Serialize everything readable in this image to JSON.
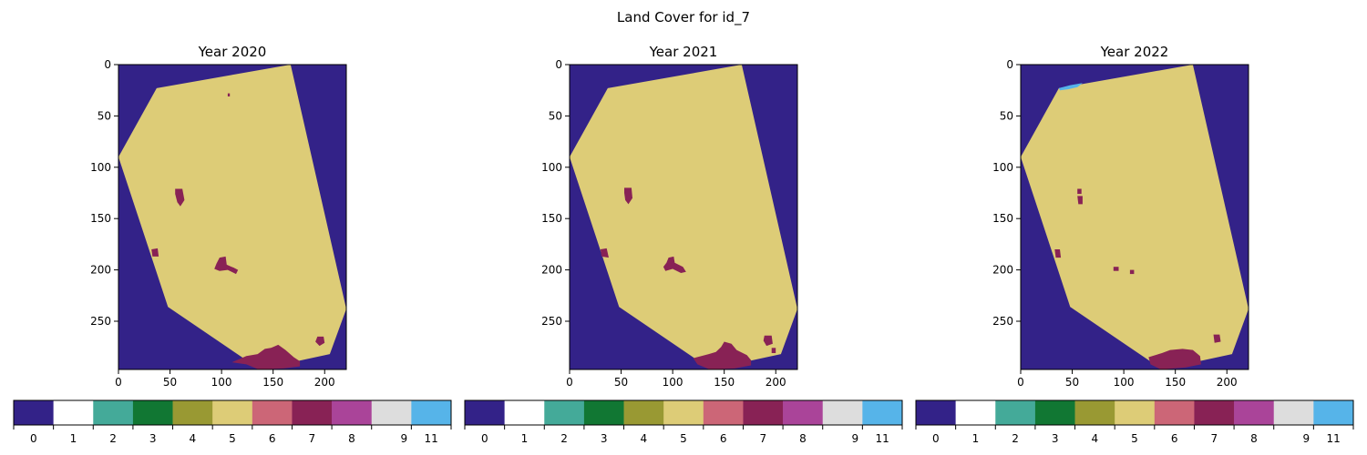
{
  "suptitle": "Land Cover for id_7",
  "colors": {
    "0": "#332288",
    "1": "#ffffff",
    "2": "#44aa99",
    "3": "#117733",
    "4": "#999933",
    "5": "#ddcc77",
    "6": "#cc6677",
    "7": "#882255",
    "8": "#aa4499",
    "9": "#dddddd",
    "11": "#56b4e9"
  },
  "colorbar": {
    "classes": [
      0,
      1,
      2,
      3,
      4,
      5,
      6,
      7,
      8,
      9,
      11
    ],
    "tick_labels": [
      "0",
      "1",
      "2",
      "3",
      "4",
      "5",
      "6",
      "7",
      "8",
      "9",
      "11"
    ]
  },
  "chart_data": [
    {
      "type": "heatmap",
      "title": "Year 2020",
      "xlim": [
        0,
        221
      ],
      "ylim": [
        297,
        0
      ],
      "x_ticks": [
        0,
        50,
        100,
        150,
        200
      ],
      "y_ticks": [
        0,
        50,
        100,
        150,
        200,
        250
      ],
      "background_class": 0,
      "parcel_class": 5,
      "parcel_polygon": [
        [
          37,
          23
        ],
        [
          167,
          0
        ],
        [
          221,
          238
        ],
        [
          205,
          282
        ],
        [
          136,
          297
        ],
        [
          124,
          288
        ],
        [
          48,
          236
        ],
        [
          0,
          90
        ]
      ],
      "patches": [
        {
          "class": 7,
          "polygon": [
            [
              55,
              121
            ],
            [
              62,
              121
            ],
            [
              64,
              132
            ],
            [
              60,
              138
            ],
            [
              57,
              134
            ],
            [
              55,
              126
            ]
          ]
        },
        {
          "class": 7,
          "polygon": [
            [
              32,
              180
            ],
            [
              38,
              179
            ],
            [
              39,
              187
            ],
            [
              33,
              187
            ]
          ]
        },
        {
          "class": 7,
          "polygon": [
            [
              98,
              188
            ],
            [
              104,
              187
            ],
            [
              105,
              195
            ],
            [
              112,
              198
            ],
            [
              116,
              200
            ],
            [
              114,
              204
            ],
            [
              106,
              200
            ],
            [
              98,
              201
            ],
            [
              93,
              199
            ],
            [
              95,
              194
            ]
          ]
        },
        {
          "class": 7,
          "polygon": [
            [
              110,
              290
            ],
            [
              124,
              284
            ],
            [
              135,
              282
            ],
            [
              142,
              277
            ],
            [
              148,
              276
            ],
            [
              155,
              273
            ],
            [
              162,
              278
            ],
            [
              170,
              285
            ],
            [
              176,
              289
            ],
            [
              176,
              294
            ],
            [
              160,
              296
            ],
            [
              136,
              297
            ],
            [
              124,
              292
            ]
          ]
        },
        {
          "class": 7,
          "polygon": [
            [
              193,
              265
            ],
            [
              199,
              265
            ],
            [
              200,
              271
            ],
            [
              195,
              274
            ],
            [
              191,
              270
            ]
          ]
        },
        {
          "class": 7,
          "polygon": [
            [
              106,
              28
            ],
            [
              108,
              28
            ],
            [
              108,
              31
            ],
            [
              106,
              31
            ]
          ]
        }
      ]
    },
    {
      "type": "heatmap",
      "title": "Year 2021",
      "xlim": [
        0,
        221
      ],
      "ylim": [
        297,
        0
      ],
      "x_ticks": [
        0,
        50,
        100,
        150,
        200
      ],
      "y_ticks": [
        0,
        50,
        100,
        150,
        200,
        250
      ],
      "background_class": 0,
      "parcel_class": 5,
      "parcel_polygon": [
        [
          37,
          23
        ],
        [
          167,
          0
        ],
        [
          221,
          238
        ],
        [
          205,
          282
        ],
        [
          136,
          297
        ],
        [
          124,
          288
        ],
        [
          48,
          236
        ],
        [
          0,
          90
        ]
      ],
      "patches": [
        {
          "class": 7,
          "polygon": [
            [
              53,
              120
            ],
            [
              60,
              120
            ],
            [
              61,
              130
            ],
            [
              57,
              136
            ],
            [
              54,
              132
            ],
            [
              53,
              125
            ]
          ]
        },
        {
          "class": 7,
          "polygon": [
            [
              30,
              180
            ],
            [
              36,
              179
            ],
            [
              38,
              188
            ],
            [
              31,
              187
            ]
          ]
        },
        {
          "class": 7,
          "polygon": [
            [
              96,
              188
            ],
            [
              101,
              187
            ],
            [
              102,
              193
            ],
            [
              110,
              197
            ],
            [
              113,
              202
            ],
            [
              108,
              203
            ],
            [
              100,
              199
            ],
            [
              93,
              201
            ],
            [
              91,
              197
            ],
            [
              94,
              193
            ]
          ]
        },
        {
          "class": 7,
          "polygon": [
            [
              120,
              286
            ],
            [
              135,
              282
            ],
            [
              142,
              280
            ],
            [
              147,
              275
            ],
            [
              150,
              270
            ],
            [
              157,
              272
            ],
            [
              162,
              278
            ],
            [
              172,
              283
            ],
            [
              176,
              288
            ],
            [
              176,
              293
            ],
            [
              160,
              296
            ],
            [
              136,
              297
            ],
            [
              124,
              292
            ]
          ]
        },
        {
          "class": 7,
          "polygon": [
            [
              189,
              264
            ],
            [
              196,
              264
            ],
            [
              197,
              272
            ],
            [
              191,
              274
            ],
            [
              188,
              269
            ]
          ]
        },
        {
          "class": 7,
          "polygon": [
            [
              196,
              276
            ],
            [
              200,
              276
            ],
            [
              200,
              281
            ],
            [
              196,
              281
            ]
          ]
        }
      ]
    },
    {
      "type": "heatmap",
      "title": "Year 2022",
      "xlim": [
        0,
        221
      ],
      "ylim": [
        297,
        0
      ],
      "x_ticks": [
        0,
        50,
        100,
        150,
        200
      ],
      "y_ticks": [
        0,
        50,
        100,
        150,
        200,
        250
      ],
      "background_class": 0,
      "parcel_class": 5,
      "parcel_polygon": [
        [
          37,
          23
        ],
        [
          167,
          0
        ],
        [
          221,
          238
        ],
        [
          205,
          282
        ],
        [
          136,
          297
        ],
        [
          124,
          288
        ],
        [
          48,
          236
        ],
        [
          0,
          90
        ]
      ],
      "patches": [
        {
          "class": 11,
          "polygon": [
            [
              37,
              23
            ],
            [
              48,
              20
            ],
            [
              60,
              18
            ],
            [
              55,
              22
            ],
            [
              46,
              24
            ],
            [
              38,
              25
            ]
          ]
        },
        {
          "class": 7,
          "polygon": [
            [
              55,
              121
            ],
            [
              59,
              121
            ],
            [
              59,
              126
            ],
            [
              55,
              126
            ]
          ]
        },
        {
          "class": 7,
          "polygon": [
            [
              55,
              128
            ],
            [
              60,
              128
            ],
            [
              60,
              136
            ],
            [
              56,
              136
            ]
          ]
        },
        {
          "class": 7,
          "polygon": [
            [
              33,
              180
            ],
            [
              38,
              180
            ],
            [
              39,
              188
            ],
            [
              34,
              188
            ]
          ]
        },
        {
          "class": 7,
          "polygon": [
            [
              90,
              197
            ],
            [
              95,
              197
            ],
            [
              95,
              201
            ],
            [
              90,
              201
            ]
          ]
        },
        {
          "class": 7,
          "polygon": [
            [
              106,
              200
            ],
            [
              110,
              200
            ],
            [
              110,
              204
            ],
            [
              106,
              204
            ]
          ]
        },
        {
          "class": 7,
          "polygon": [
            [
              124,
              285
            ],
            [
              137,
              281
            ],
            [
              145,
              278
            ],
            [
              157,
              277
            ],
            [
              167,
              278
            ],
            [
              174,
              284
            ],
            [
              175,
              292
            ],
            [
              160,
              295
            ],
            [
              136,
              297
            ],
            [
              126,
              292
            ]
          ]
        },
        {
          "class": 7,
          "polygon": [
            [
              187,
              263
            ],
            [
              193,
              263
            ],
            [
              194,
              270
            ],
            [
              188,
              271
            ]
          ]
        }
      ]
    }
  ]
}
